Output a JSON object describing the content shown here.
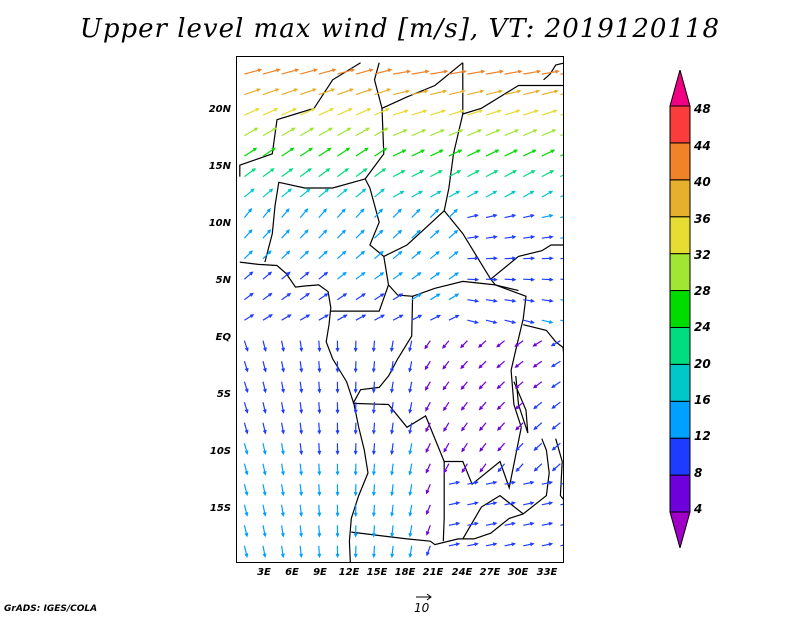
{
  "title": "Upper level max wind [m/s], VT: 2019120118",
  "credit": "GrADS: IGES/COLA",
  "reference_vector": {
    "label": "10",
    "value": 10
  },
  "chart_data": {
    "type": "vector-field-map",
    "title": "Upper level max wind [m/s], VT: 2019120118",
    "units": "m/s",
    "valid_time": "2019120118",
    "x_ticks": [
      "3E",
      "6E",
      "9E",
      "12E",
      "15E",
      "18E",
      "21E",
      "24E",
      "27E",
      "30E",
      "33E"
    ],
    "y_ticks": [
      "20N",
      "15N",
      "10N",
      "5N",
      "EQ",
      "5S",
      "10S",
      "15S"
    ],
    "colorbar": {
      "levels": [
        4,
        8,
        12,
        16,
        20,
        24,
        28,
        32,
        36,
        40,
        44,
        48
      ],
      "labels": [
        "4",
        "8",
        "12",
        "16",
        "20",
        "24",
        "28",
        "32",
        "36",
        "40",
        "44",
        "48"
      ],
      "colors": [
        "#a000c8",
        "#6e00dc",
        "#1e3cff",
        "#00a0ff",
        "#00c8c8",
        "#00dc80",
        "#00dc00",
        "#a0e632",
        "#e6dc32",
        "#e6af2d",
        "#f08228",
        "#fa3c3c",
        "#f00082"
      ]
    }
  }
}
